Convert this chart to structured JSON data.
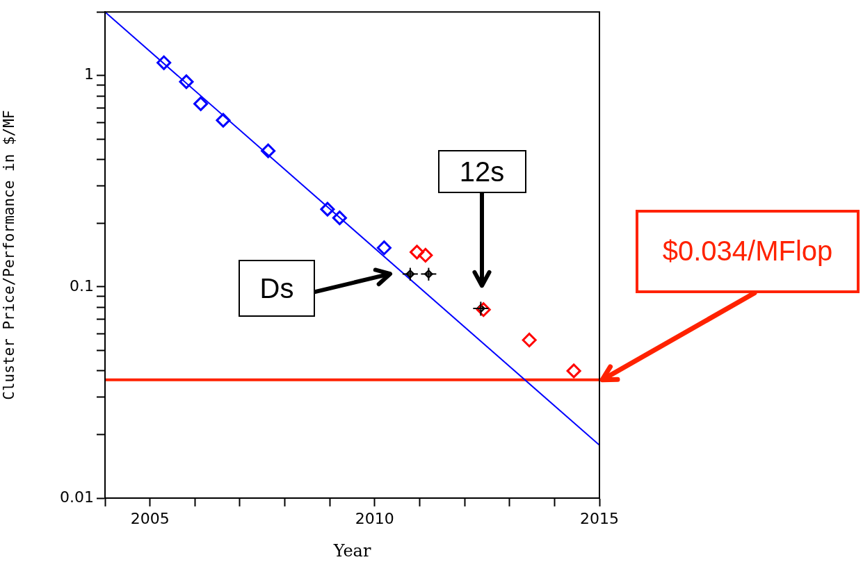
{
  "chart_data": {
    "type": "scatter",
    "xlabel": "Year",
    "ylabel": "Cluster Price/Performance in $/MF",
    "log": "y",
    "xlim": [
      2004,
      2015
    ],
    "ylim": [
      0.01,
      2
    ],
    "xticks": [
      {
        "value": 2004,
        "label": null
      },
      2005,
      {
        "value": 2006,
        "label": null
      },
      {
        "value": 2007,
        "label": null
      },
      {
        "value": 2008,
        "label": null
      },
      {
        "value": 2009,
        "label": null
      },
      2010,
      {
        "value": 2011,
        "label": null
      },
      {
        "value": 2012,
        "label": null
      },
      {
        "value": 2013,
        "label": null
      },
      {
        "value": 2014,
        "label": null
      },
      2015
    ],
    "yticks": [
      0.01,
      {
        "value": 0.02,
        "label": null
      },
      {
        "value": 0.03,
        "label": null
      },
      {
        "value": 0.04,
        "label": null
      },
      {
        "value": 0.05,
        "label": null
      },
      {
        "value": 0.06,
        "label": null
      },
      {
        "value": 0.07,
        "label": null
      },
      {
        "value": 0.08,
        "label": null
      },
      {
        "value": 0.09,
        "label": null
      },
      0.1,
      {
        "value": 0.2,
        "label": null
      },
      {
        "value": 0.3,
        "label": null
      },
      {
        "value": 0.4,
        "label": null
      },
      {
        "value": 0.5,
        "label": null
      },
      {
        "value": 0.6,
        "label": null
      },
      {
        "value": 0.7,
        "label": null
      },
      {
        "value": 0.8,
        "label": null
      },
      {
        "value": 0.9,
        "label": null
      },
      1,
      {
        "value": 2,
        "label": null
      }
    ],
    "grid": false,
    "legend": false,
    "marker": "diamond",
    "series": [
      {
        "color": "#0000ff",
        "x": [
          2005.31,
          2005.81,
          2006.13,
          2006.63,
          2007.63,
          2008.95,
          2009.22,
          2010.21
        ],
        "values": [
          1.15,
          0.935,
          0.735,
          0.614,
          0.44,
          0.233,
          0.212,
          0.153
        ]
      },
      {
        "color": "#ff0000",
        "x": [
          2010.94,
          2011.13,
          2012.42,
          2013.44,
          2014.43
        ],
        "values": [
          0.146,
          0.141,
          0.078,
          0.056,
          0.04
        ]
      },
      {
        "color": "#000000",
        "x": [
          2010.79,
          2011.2,
          2012.36
        ],
        "values": [
          0.115,
          0.115,
          0.079
        ],
        "xerrors": [
          0.17,
          0.17,
          0.17
        ],
        "errors": [
          0.008,
          0.008,
          0.006
        ]
      },
      {
        "type": "line",
        "color": "#0000ff",
        "x": [
          2004,
          2015
        ],
        "values": [
          2.0,
          0.0178
        ],
        "marker": "none"
      }
    ],
    "ref_lines": [
      {
        "axis": "y",
        "value": 0.0363,
        "label": "$0.034/MFlop",
        "color": "#ff2200"
      }
    ],
    "annotations": [
      "Ds",
      "12s"
    ]
  }
}
